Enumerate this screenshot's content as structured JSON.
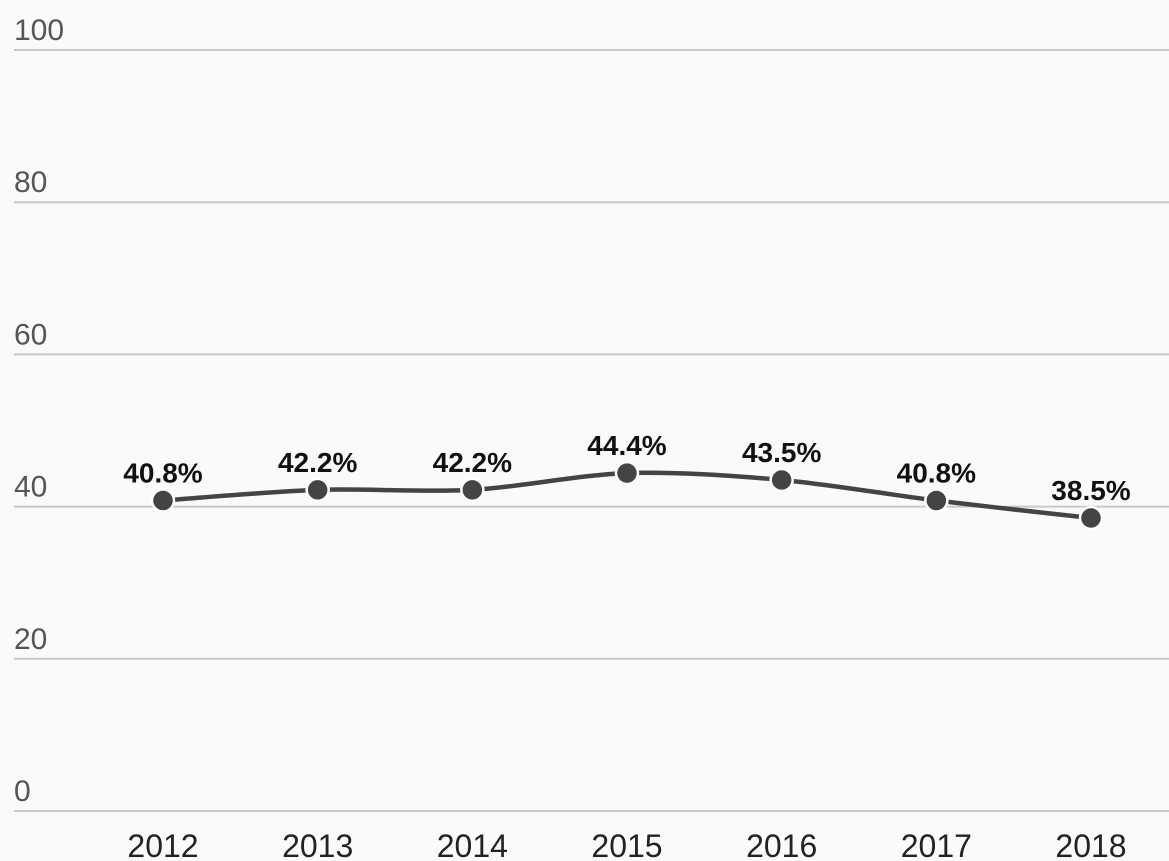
{
  "chart_data": {
    "type": "line",
    "categories": [
      "2012",
      "2013",
      "2014",
      "2015",
      "2016",
      "2017",
      "2018"
    ],
    "values": [
      40.8,
      42.2,
      42.2,
      44.4,
      43.5,
      40.8,
      38.5
    ],
    "value_labels": [
      "40.8%",
      "42.2%",
      "42.2%",
      "44.4%",
      "43.5%",
      "40.8%",
      "38.5%"
    ],
    "color": "#444444",
    "ylim": [
      0,
      100
    ],
    "yticks": [
      0,
      20,
      40,
      60,
      80,
      100
    ],
    "grid": true
  }
}
